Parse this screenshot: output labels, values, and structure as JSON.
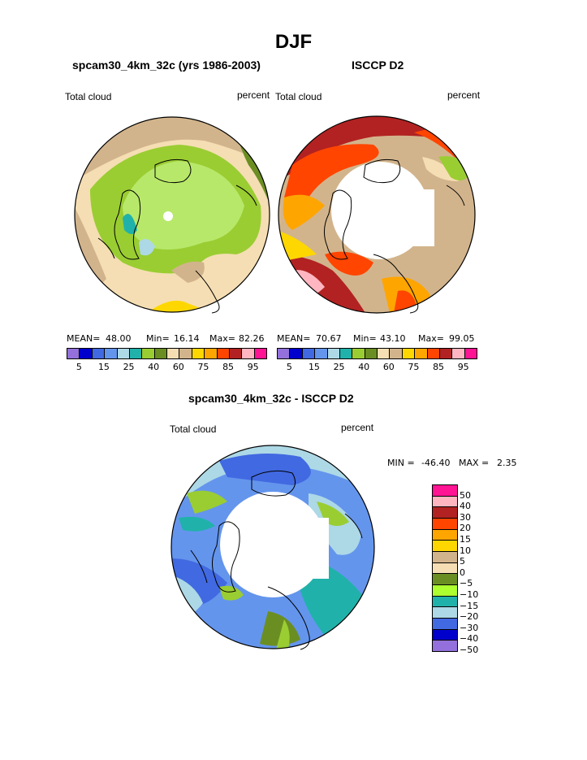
{
  "title": "DJF",
  "panel_left": {
    "subtitle": "spcam30_4km_32c (yrs 1986-2003)",
    "left_label": "Total cloud",
    "right_label": "percent",
    "mean_label": "MEAN=",
    "mean": "48.00",
    "min_label": "Min=",
    "min": "16.14",
    "max_label": "Max=",
    "max": "82.26"
  },
  "panel_right": {
    "subtitle": "ISCCP D2",
    "left_label": "Total cloud",
    "right_label": "percent",
    "mean_label": "MEAN=",
    "mean": "70.67",
    "min_label": "Min=",
    "min": "43.10",
    "max_label": "Max=",
    "max": "99.05"
  },
  "horizontal_colorbar": {
    "colors": [
      "#9370db",
      "#0000cd",
      "#4169e1",
      "#6495ed",
      "#add8e6",
      "#20b2aa",
      "#9acd32",
      "#6b8e23",
      "#f5deb3",
      "#d2b48c",
      "#ffd700",
      "#ffa500",
      "#ff4500",
      "#b22222",
      "#ffb6c1",
      "#ff1493"
    ],
    "ticks": [
      "5",
      "15",
      "25",
      "40",
      "60",
      "75",
      "85",
      "95"
    ]
  },
  "panel_diff": {
    "subtitle": "spcam30_4km_32c - ISCCP D2",
    "left_label": "Total cloud",
    "right_label": "percent",
    "min_label": "MIN =",
    "min": "-46.40",
    "max_label": "MAX =",
    "max": "2.35"
  },
  "vertical_colorbar": {
    "colors": [
      "#ff1493",
      "#ffb6c1",
      "#b22222",
      "#ff4500",
      "#ffa500",
      "#ffd700",
      "#d2b48c",
      "#f5deb3",
      "#6b8e23",
      "#adff2f",
      "#20b2aa",
      "#add8e6",
      "#4169e1",
      "#0000cd",
      "#9370db"
    ],
    "ticks": [
      "50",
      "40",
      "30",
      "20",
      "15",
      "10",
      "5",
      "0",
      "−5",
      "−10",
      "−15",
      "−20",
      "−30",
      "−40",
      "−50"
    ]
  }
}
